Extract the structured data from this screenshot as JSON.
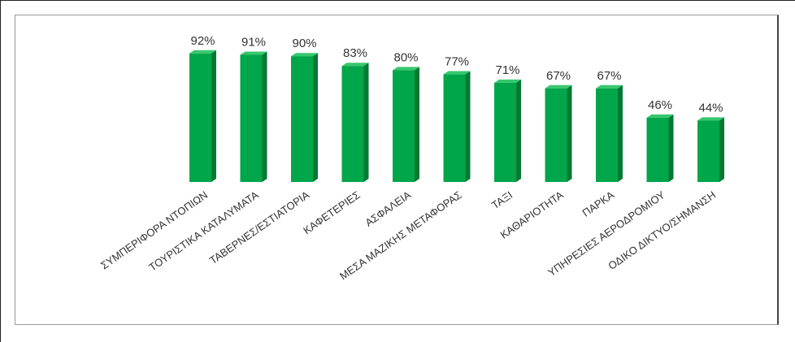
{
  "chart_data": {
    "type": "bar",
    "categories": [
      "ΣΥΜΠΕΡΙΦΟΡΑ ΝΤΟΠΙΩΝ",
      "ΤΟΥΡΙΣΤΙΚΑ ΚΑΤΑΛΥΜΑΤΑ",
      "ΤΑΒΕΡΝΕΣ/ΕΣΤΙΑΤΟΡΙΑ",
      "ΚΑΦΕΤΕΡΙΕΣ",
      "ΑΣΦΑΛΕΙΑ",
      "ΜΕΣΑ ΜΑΖΙΚΗΣ ΜΕΤΑΦΟΡΑΣ",
      "ΤΑΞΙ",
      "ΚΑΘΑΡΙΟΤΗΤΑ",
      "ΠΑΡΚΑ",
      "ΥΠΗΡΕΣΙΕΣ ΑΕΡΟΔΡΟΜΙΟΥ",
      "ΟΔΙΚΟ ΔΙΚΤΥΟ/ΣΗΜΑΝΣΗ"
    ],
    "values": [
      92,
      91,
      90,
      83,
      80,
      77,
      71,
      67,
      67,
      46,
      44
    ],
    "value_labels": [
      "92%",
      "91%",
      "90%",
      "83%",
      "80%",
      "77%",
      "71%",
      "67%",
      "67%",
      "46%",
      "44%"
    ],
    "ylim": [
      0,
      100
    ],
    "grid": false,
    "legend": "none",
    "colors": {
      "bar_front": "#00a64a",
      "bar_side": "#007a33",
      "bar_top": "#37c76d"
    }
  }
}
